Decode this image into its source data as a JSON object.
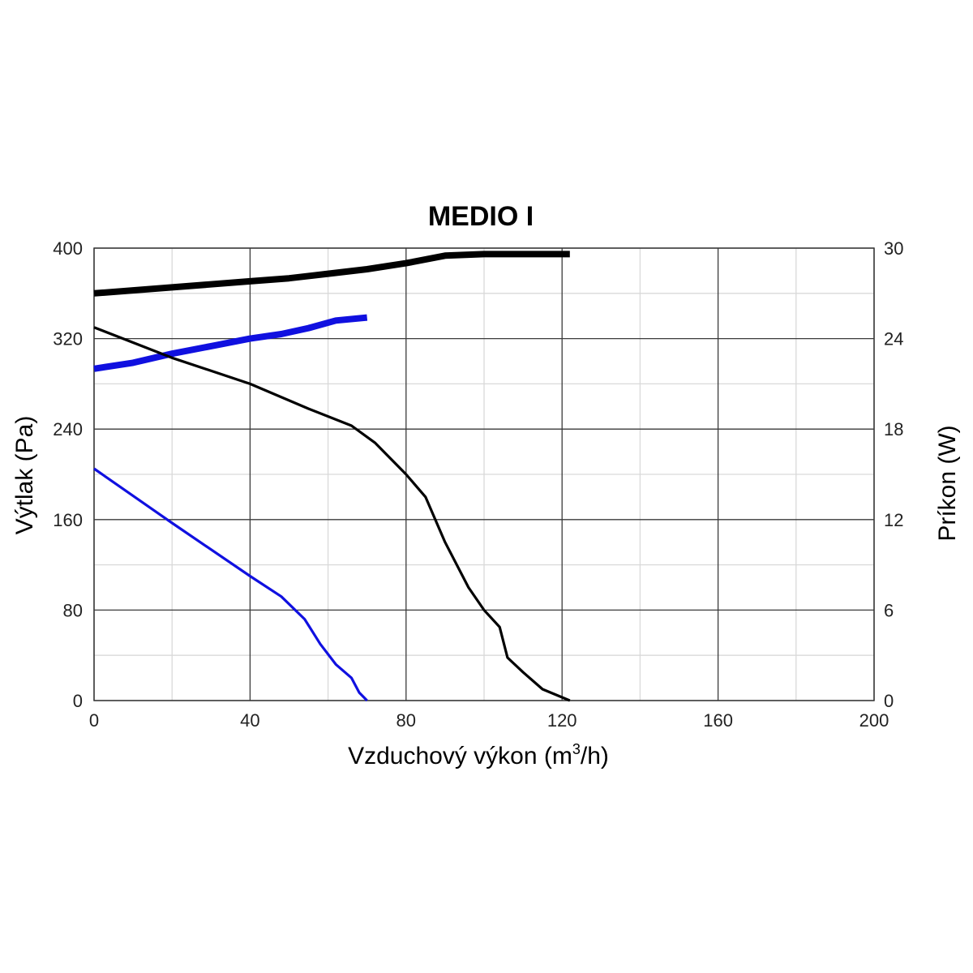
{
  "chart_data": {
    "type": "line",
    "title": "MEDIO I",
    "xlabel": {
      "text": "Vzduchový výkon (m",
      "sup": "3",
      "suffix": "/h)"
    },
    "ylabel_left": "Výtlak (Pa)",
    "ylabel_right": "Príkon (W)",
    "xlim": [
      0,
      200
    ],
    "ylim_left": [
      0,
      400
    ],
    "ylim_right": [
      0,
      30
    ],
    "x_ticks": [
      "0",
      "40",
      "80",
      "120",
      "160",
      "200"
    ],
    "y_left_ticks": [
      "0",
      "80",
      "160",
      "240",
      "320",
      "400"
    ],
    "y_right_ticks": [
      "0",
      "6",
      "12",
      "18",
      "24",
      "30"
    ],
    "grid": true,
    "colors": {
      "black": "#000000",
      "blue": "#1010e0",
      "major_grid": "#3a3a3a",
      "minor_grid": "#d9d9d9"
    },
    "series": [
      {
        "axis": "right",
        "color": "black",
        "thick": true,
        "points": [
          [
            0,
            27
          ],
          [
            20,
            27.4
          ],
          [
            40,
            27.8
          ],
          [
            50,
            28
          ],
          [
            60,
            28.3
          ],
          [
            70,
            28.6
          ],
          [
            80,
            29
          ],
          [
            90,
            29.5
          ],
          [
            100,
            29.6
          ],
          [
            110,
            29.6
          ],
          [
            122,
            29.6
          ]
        ]
      },
      {
        "axis": "right",
        "color": "blue",
        "thick": true,
        "points": [
          [
            0,
            22
          ],
          [
            10,
            22.4
          ],
          [
            20,
            23
          ],
          [
            30,
            23.5
          ],
          [
            40,
            24
          ],
          [
            48,
            24.3
          ],
          [
            55,
            24.7
          ],
          [
            62,
            25.2
          ],
          [
            70,
            25.4
          ]
        ]
      },
      {
        "axis": "left",
        "color": "black",
        "thick": false,
        "points": [
          [
            0,
            330
          ],
          [
            20,
            303
          ],
          [
            40,
            280
          ],
          [
            55,
            258
          ],
          [
            66,
            243
          ],
          [
            72,
            228
          ],
          [
            80,
            200
          ],
          [
            85,
            180
          ],
          [
            90,
            140
          ],
          [
            96,
            100
          ],
          [
            100,
            80
          ],
          [
            104,
            65
          ],
          [
            106,
            38
          ],
          [
            110,
            25
          ],
          [
            115,
            10
          ],
          [
            122,
            0
          ]
        ]
      },
      {
        "axis": "left",
        "color": "blue",
        "thick": false,
        "points": [
          [
            0,
            205
          ],
          [
            20,
            157
          ],
          [
            40,
            110
          ],
          [
            48,
            92
          ],
          [
            54,
            72
          ],
          [
            58,
            50
          ],
          [
            62,
            32
          ],
          [
            66,
            20
          ],
          [
            68,
            7
          ],
          [
            70,
            0
          ]
        ]
      }
    ]
  }
}
